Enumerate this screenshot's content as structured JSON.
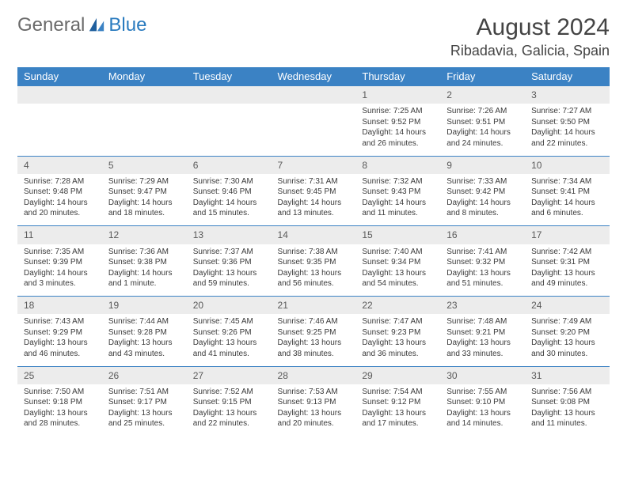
{
  "logo": {
    "general": "General",
    "blue": "Blue"
  },
  "title": {
    "month": "August 2024",
    "location": "Ribadavia, Galicia, Spain"
  },
  "colors": {
    "header_bg": "#3b82c4",
    "header_text": "#ffffff",
    "daynum_bg": "#ececec",
    "border": "#3b82c4",
    "logo_gray": "#6a6a6a",
    "logo_blue": "#2a7bbf"
  },
  "day_headers": [
    "Sunday",
    "Monday",
    "Tuesday",
    "Wednesday",
    "Thursday",
    "Friday",
    "Saturday"
  ],
  "weeks": [
    {
      "nums": [
        "",
        "",
        "",
        "",
        "1",
        "2",
        "3"
      ],
      "cells": [
        null,
        null,
        null,
        null,
        {
          "sunrise": "Sunrise: 7:25 AM",
          "sunset": "Sunset: 9:52 PM",
          "day1": "Daylight: 14 hours",
          "day2": "and 26 minutes."
        },
        {
          "sunrise": "Sunrise: 7:26 AM",
          "sunset": "Sunset: 9:51 PM",
          "day1": "Daylight: 14 hours",
          "day2": "and 24 minutes."
        },
        {
          "sunrise": "Sunrise: 7:27 AM",
          "sunset": "Sunset: 9:50 PM",
          "day1": "Daylight: 14 hours",
          "day2": "and 22 minutes."
        }
      ]
    },
    {
      "nums": [
        "4",
        "5",
        "6",
        "7",
        "8",
        "9",
        "10"
      ],
      "cells": [
        {
          "sunrise": "Sunrise: 7:28 AM",
          "sunset": "Sunset: 9:48 PM",
          "day1": "Daylight: 14 hours",
          "day2": "and 20 minutes."
        },
        {
          "sunrise": "Sunrise: 7:29 AM",
          "sunset": "Sunset: 9:47 PM",
          "day1": "Daylight: 14 hours",
          "day2": "and 18 minutes."
        },
        {
          "sunrise": "Sunrise: 7:30 AM",
          "sunset": "Sunset: 9:46 PM",
          "day1": "Daylight: 14 hours",
          "day2": "and 15 minutes."
        },
        {
          "sunrise": "Sunrise: 7:31 AM",
          "sunset": "Sunset: 9:45 PM",
          "day1": "Daylight: 14 hours",
          "day2": "and 13 minutes."
        },
        {
          "sunrise": "Sunrise: 7:32 AM",
          "sunset": "Sunset: 9:43 PM",
          "day1": "Daylight: 14 hours",
          "day2": "and 11 minutes."
        },
        {
          "sunrise": "Sunrise: 7:33 AM",
          "sunset": "Sunset: 9:42 PM",
          "day1": "Daylight: 14 hours",
          "day2": "and 8 minutes."
        },
        {
          "sunrise": "Sunrise: 7:34 AM",
          "sunset": "Sunset: 9:41 PM",
          "day1": "Daylight: 14 hours",
          "day2": "and 6 minutes."
        }
      ]
    },
    {
      "nums": [
        "11",
        "12",
        "13",
        "14",
        "15",
        "16",
        "17"
      ],
      "cells": [
        {
          "sunrise": "Sunrise: 7:35 AM",
          "sunset": "Sunset: 9:39 PM",
          "day1": "Daylight: 14 hours",
          "day2": "and 3 minutes."
        },
        {
          "sunrise": "Sunrise: 7:36 AM",
          "sunset": "Sunset: 9:38 PM",
          "day1": "Daylight: 14 hours",
          "day2": "and 1 minute."
        },
        {
          "sunrise": "Sunrise: 7:37 AM",
          "sunset": "Sunset: 9:36 PM",
          "day1": "Daylight: 13 hours",
          "day2": "and 59 minutes."
        },
        {
          "sunrise": "Sunrise: 7:38 AM",
          "sunset": "Sunset: 9:35 PM",
          "day1": "Daylight: 13 hours",
          "day2": "and 56 minutes."
        },
        {
          "sunrise": "Sunrise: 7:40 AM",
          "sunset": "Sunset: 9:34 PM",
          "day1": "Daylight: 13 hours",
          "day2": "and 54 minutes."
        },
        {
          "sunrise": "Sunrise: 7:41 AM",
          "sunset": "Sunset: 9:32 PM",
          "day1": "Daylight: 13 hours",
          "day2": "and 51 minutes."
        },
        {
          "sunrise": "Sunrise: 7:42 AM",
          "sunset": "Sunset: 9:31 PM",
          "day1": "Daylight: 13 hours",
          "day2": "and 49 minutes."
        }
      ]
    },
    {
      "nums": [
        "18",
        "19",
        "20",
        "21",
        "22",
        "23",
        "24"
      ],
      "cells": [
        {
          "sunrise": "Sunrise: 7:43 AM",
          "sunset": "Sunset: 9:29 PM",
          "day1": "Daylight: 13 hours",
          "day2": "and 46 minutes."
        },
        {
          "sunrise": "Sunrise: 7:44 AM",
          "sunset": "Sunset: 9:28 PM",
          "day1": "Daylight: 13 hours",
          "day2": "and 43 minutes."
        },
        {
          "sunrise": "Sunrise: 7:45 AM",
          "sunset": "Sunset: 9:26 PM",
          "day1": "Daylight: 13 hours",
          "day2": "and 41 minutes."
        },
        {
          "sunrise": "Sunrise: 7:46 AM",
          "sunset": "Sunset: 9:25 PM",
          "day1": "Daylight: 13 hours",
          "day2": "and 38 minutes."
        },
        {
          "sunrise": "Sunrise: 7:47 AM",
          "sunset": "Sunset: 9:23 PM",
          "day1": "Daylight: 13 hours",
          "day2": "and 36 minutes."
        },
        {
          "sunrise": "Sunrise: 7:48 AM",
          "sunset": "Sunset: 9:21 PM",
          "day1": "Daylight: 13 hours",
          "day2": "and 33 minutes."
        },
        {
          "sunrise": "Sunrise: 7:49 AM",
          "sunset": "Sunset: 9:20 PM",
          "day1": "Daylight: 13 hours",
          "day2": "and 30 minutes."
        }
      ]
    },
    {
      "nums": [
        "25",
        "26",
        "27",
        "28",
        "29",
        "30",
        "31"
      ],
      "cells": [
        {
          "sunrise": "Sunrise: 7:50 AM",
          "sunset": "Sunset: 9:18 PM",
          "day1": "Daylight: 13 hours",
          "day2": "and 28 minutes."
        },
        {
          "sunrise": "Sunrise: 7:51 AM",
          "sunset": "Sunset: 9:17 PM",
          "day1": "Daylight: 13 hours",
          "day2": "and 25 minutes."
        },
        {
          "sunrise": "Sunrise: 7:52 AM",
          "sunset": "Sunset: 9:15 PM",
          "day1": "Daylight: 13 hours",
          "day2": "and 22 minutes."
        },
        {
          "sunrise": "Sunrise: 7:53 AM",
          "sunset": "Sunset: 9:13 PM",
          "day1": "Daylight: 13 hours",
          "day2": "and 20 minutes."
        },
        {
          "sunrise": "Sunrise: 7:54 AM",
          "sunset": "Sunset: 9:12 PM",
          "day1": "Daylight: 13 hours",
          "day2": "and 17 minutes."
        },
        {
          "sunrise": "Sunrise: 7:55 AM",
          "sunset": "Sunset: 9:10 PM",
          "day1": "Daylight: 13 hours",
          "day2": "and 14 minutes."
        },
        {
          "sunrise": "Sunrise: 7:56 AM",
          "sunset": "Sunset: 9:08 PM",
          "day1": "Daylight: 13 hours",
          "day2": "and 11 minutes."
        }
      ]
    }
  ]
}
